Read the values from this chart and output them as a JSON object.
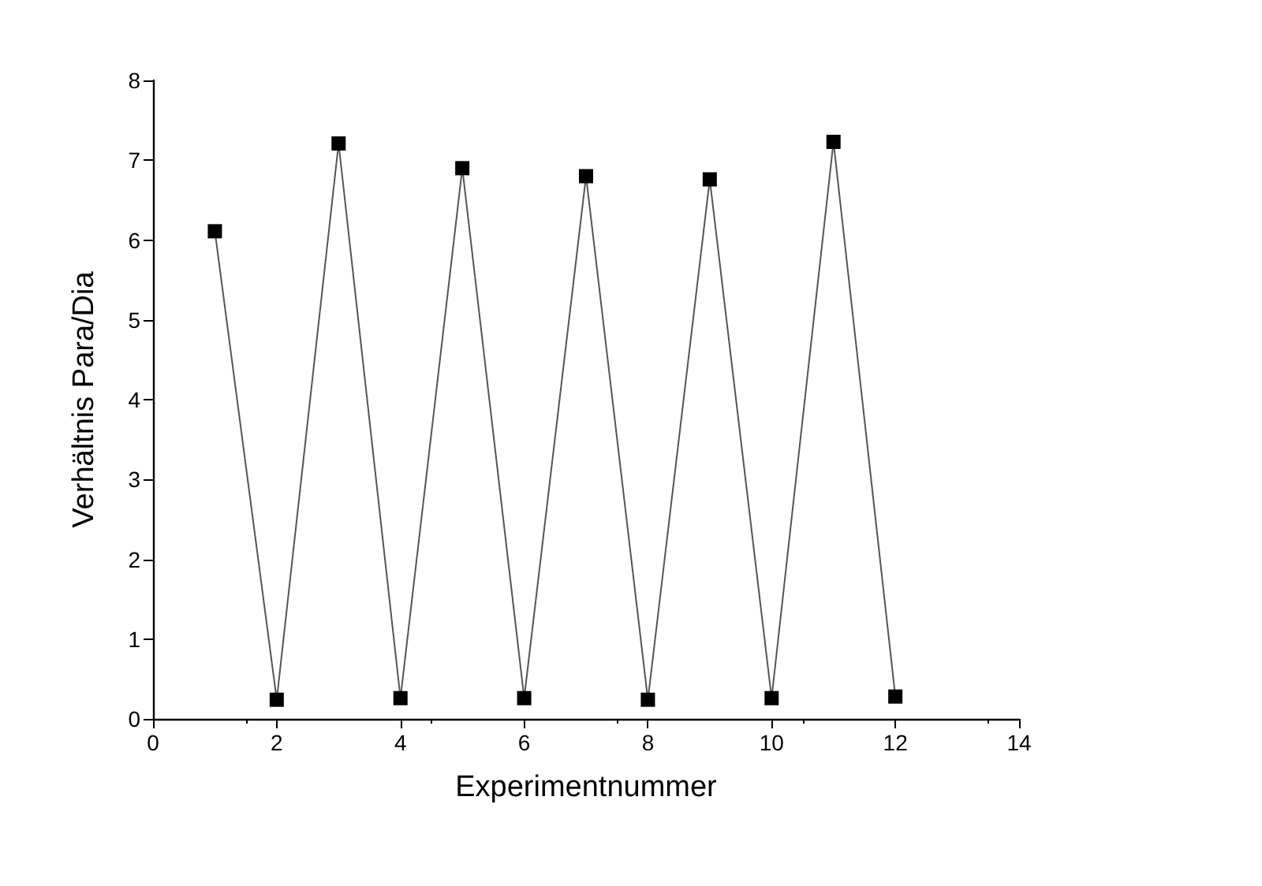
{
  "chart_data": {
    "type": "line",
    "xlabel": "Experimentnummer",
    "ylabel": "Verhältnis Para/Dia",
    "x": [
      1,
      2,
      3,
      4,
      5,
      6,
      7,
      8,
      9,
      10,
      11,
      12
    ],
    "series": [
      {
        "color": "#000000",
        "values": [
          6.11,
          0.24,
          7.21,
          0.26,
          6.9,
          0.26,
          6.8,
          0.24,
          6.76,
          0.26,
          7.23,
          0.28
        ]
      }
    ],
    "xlim": [
      0,
      14
    ],
    "xticks": [
      0,
      2,
      4,
      6,
      8,
      10,
      12,
      14
    ],
    "ylim": [
      0,
      8
    ],
    "yticks": [
      0,
      1,
      2,
      3,
      4,
      5,
      6,
      7,
      8
    ],
    "grid": false,
    "marker": "square",
    "line_style": "solid"
  }
}
